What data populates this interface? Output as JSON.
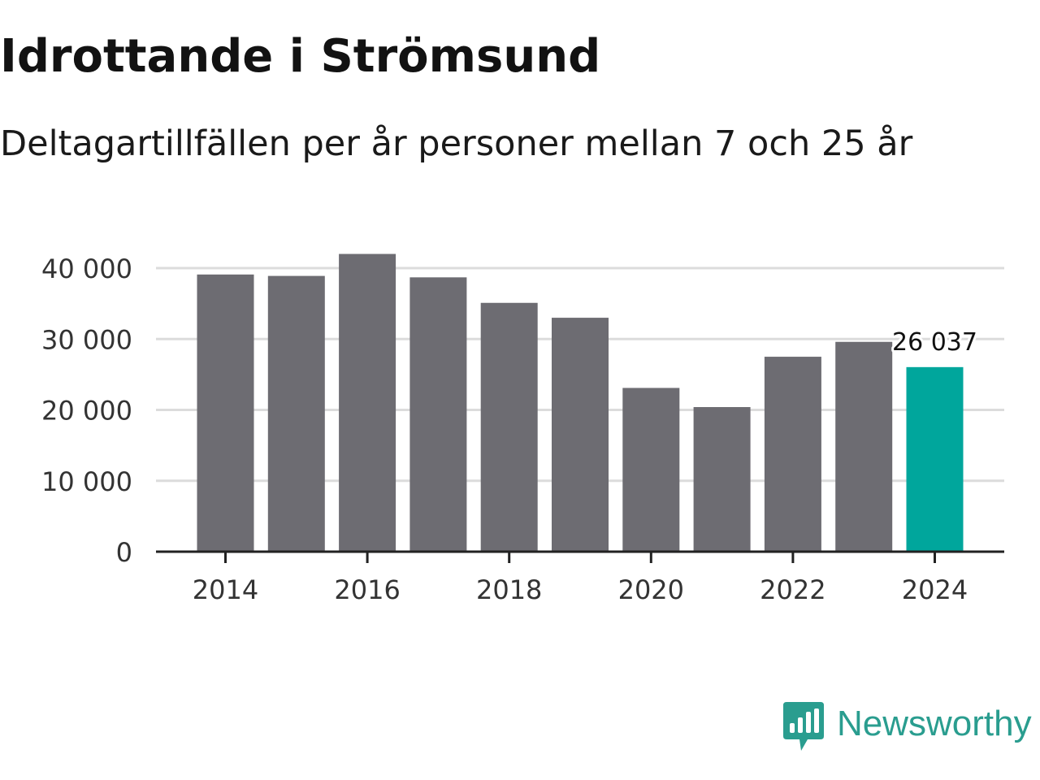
{
  "colors": {
    "bar": "#6d6c72",
    "highlight": "#00a69c",
    "grid": "#dcdcdc",
    "axis": "#222222",
    "brand": "#2a9d8f"
  },
  "chart_data": {
    "type": "bar",
    "title": "Idrottande i Strömsund",
    "subtitle": "Deltagartillfällen per år personer mellan 7 och 25 år",
    "xlabel": "",
    "ylabel": "",
    "categories": [
      "2014",
      "2015",
      "2016",
      "2017",
      "2018",
      "2019",
      "2020",
      "2021",
      "2022",
      "2023",
      "2024"
    ],
    "values": [
      39100,
      38900,
      42000,
      38700,
      35100,
      33000,
      23100,
      20400,
      27500,
      29600,
      26037
    ],
    "x_ticks": [
      "2014",
      "2016",
      "2018",
      "2020",
      "2022",
      "2024"
    ],
    "y_ticks": [
      0,
      10000,
      20000,
      30000,
      40000
    ],
    "y_tick_labels": [
      "0",
      "10 000",
      "20 000",
      "30 000",
      "40 000"
    ],
    "ylim": [
      0,
      42000
    ],
    "grid": true,
    "highlight_index": 10,
    "annotation": {
      "category": "2024",
      "text": "26 037"
    }
  },
  "branding": {
    "icon": "newsworthy-logo-icon",
    "name": "Newsworthy"
  }
}
